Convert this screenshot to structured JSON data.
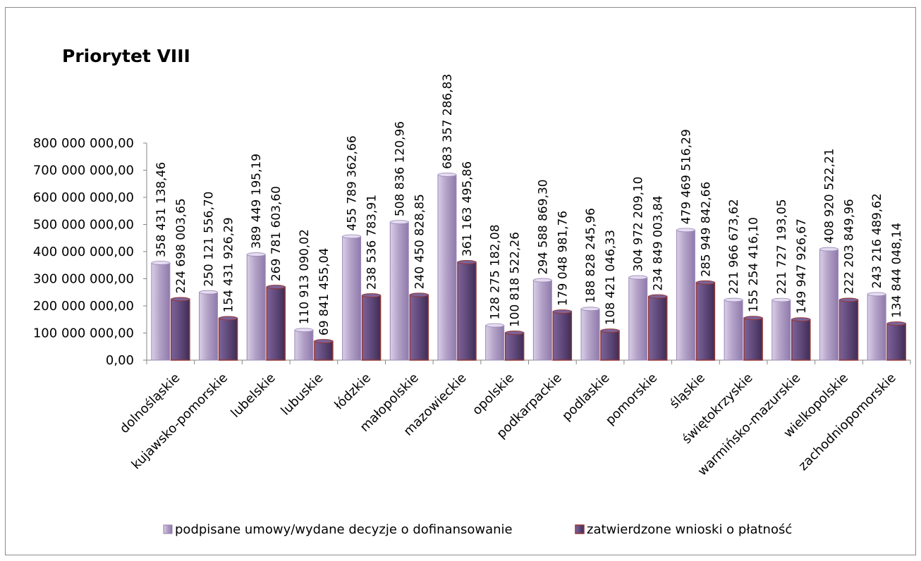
{
  "chart_data": {
    "type": "bar",
    "title": "Priorytet VIII",
    "categories": [
      "dolnośląskie",
      "kujawsko-pomorskie",
      "lubelskie",
      "lubuskie",
      "łódzkie",
      "małopolskie",
      "mazowieckie",
      "opolskie",
      "podkarpackie",
      "podlaskie",
      "pomorskie",
      "śląskie",
      "świętokrzyskie",
      "warmińsko-mazurskie",
      "wielkopolskie",
      "zachodniopomorskie"
    ],
    "series": [
      {
        "name": "podpisane umowy/wydane decyzje o dofinansowanie",
        "color": "#b3a2c7",
        "values": [
          358431138.46,
          250121556.7,
          389449195.19,
          110913090.02,
          455789362.66,
          508836120.96,
          683357286.83,
          128275182.08,
          294588869.3,
          188828245.96,
          304972209.1,
          479469516.29,
          221966673.62,
          221727193.05,
          408920522.21,
          243216489.62
        ],
        "labels": [
          "358 431 138,46",
          "250 121 556,70",
          "389 449 195,19",
          "110 913 090,02",
          "455 789 362,66",
          "508 836 120,96",
          "683 357 286,83",
          "128 275 182,08",
          "294 588 869,30",
          "188 828 245,96",
          "304 972 209,10",
          "479 469 516,29",
          "221 966 673,62",
          "221 727 193,05",
          "408 920 522,21",
          "243 216 489,62"
        ]
      },
      {
        "name": "zatwierdzone wnioski o płatność",
        "color": "#60497a",
        "edge": "#953735",
        "values": [
          224698003.65,
          154431926.29,
          269781603.6,
          69841455.04,
          238536783.91,
          240450828.85,
          361163495.86,
          100818522.26,
          179048981.76,
          108421046.33,
          234849003.84,
          285949842.66,
          155254416.1,
          149947926.67,
          222203849.96,
          134844048.14
        ],
        "labels": [
          "224 698 003,65",
          "154 431 926,29",
          "269 781 603,60",
          "69 841 455,04",
          "238 536 783,91",
          "240 450 828,85",
          "361 163 495,86",
          "100 818 522,26",
          "179 048 981,76",
          "108 421 046,33",
          "234 849 003,84",
          "285 949 842,66",
          "155 254 416,10",
          "149 947 926,67",
          "222 203 849,96",
          "134 844 048,14"
        ]
      }
    ],
    "y_ticks": [
      "0,00",
      "100 000 000,00",
      "200 000 000,00",
      "300 000 000,00",
      "400 000 000,00",
      "500 000 000,00",
      "600 000 000,00",
      "700 000 000,00",
      "800 000 000,00"
    ],
    "ylim": [
      0,
      800000000
    ],
    "grid": false,
    "legend": "bottom"
  }
}
